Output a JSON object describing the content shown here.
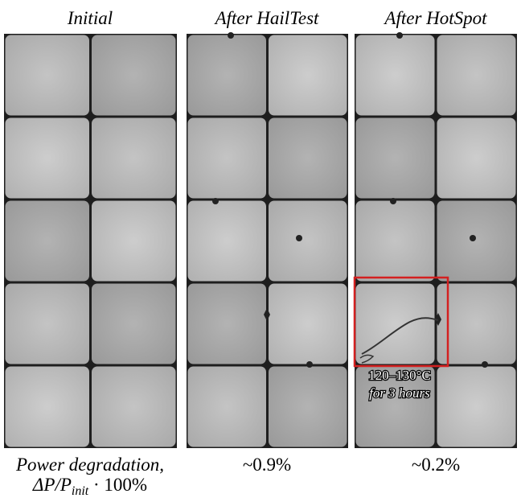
{
  "headers": [
    "Initial",
    "After HailTest",
    "After HotSpot"
  ],
  "annotation": {
    "line1": "120–130°C",
    "line2": "for 3 hours"
  },
  "footer": {
    "label_line1": "Power degradation,",
    "label_main": "ΔP/P",
    "label_sub": "init",
    "label_tail": " · 100%",
    "values": [
      "~0.9%",
      "~0.2%"
    ]
  }
}
